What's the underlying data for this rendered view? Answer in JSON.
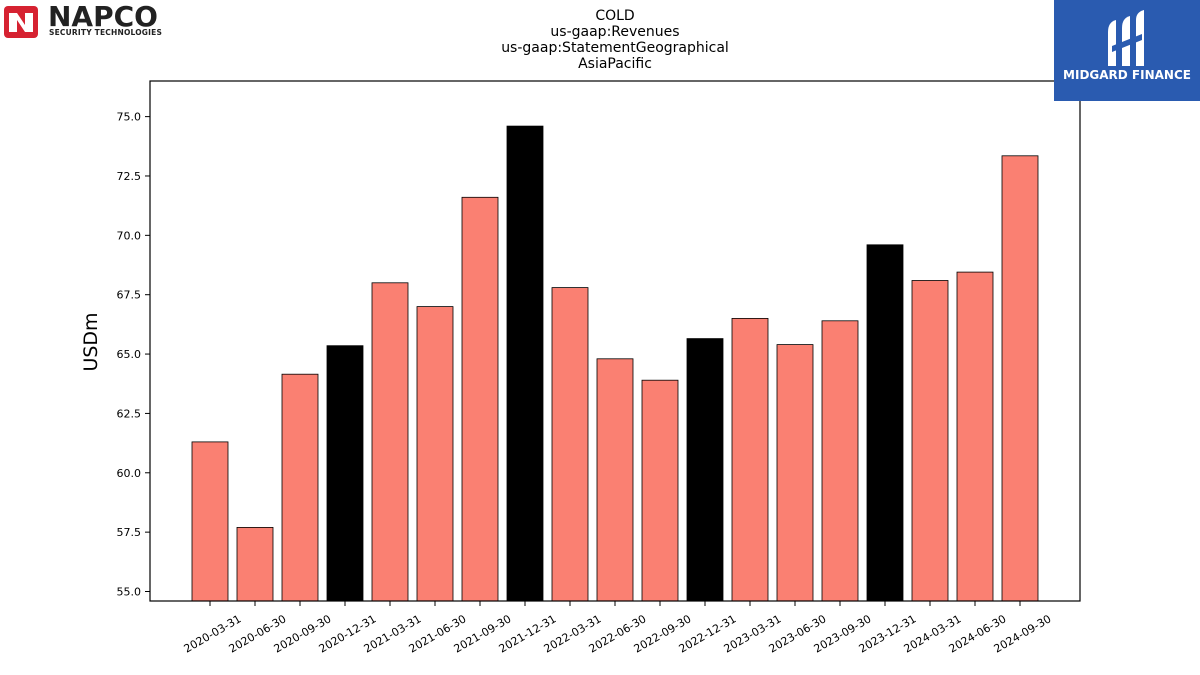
{
  "logos": {
    "left": {
      "word": "NAPCO",
      "sub": "SECURITY TECHNOLOGIES"
    },
    "right": {
      "text": "MIDGARD FINANCE"
    }
  },
  "chart_data": {
    "type": "bar",
    "title_lines": [
      "COLD",
      "us-gaap:Revenues",
      "us-gaap:StatementGeographical",
      "AsiaPacific"
    ],
    "xlabel": "",
    "ylabel": "USDm",
    "categories": [
      "2020-03-31",
      "2020-06-30",
      "2020-09-30",
      "2020-12-31",
      "2021-03-31",
      "2021-06-30",
      "2021-09-30",
      "2021-12-31",
      "2022-03-31",
      "2022-06-30",
      "2022-09-30",
      "2022-12-31",
      "2023-03-31",
      "2023-06-30",
      "2023-09-30",
      "2023-12-31",
      "2024-03-31",
      "2024-06-30",
      "2024-09-30"
    ],
    "values": [
      61.3,
      57.7,
      64.15,
      65.35,
      68.0,
      67.0,
      71.6,
      74.6,
      67.8,
      64.8,
      63.9,
      65.65,
      66.5,
      65.4,
      66.4,
      69.6,
      68.1,
      68.45,
      73.35
    ],
    "highlight": [
      false,
      false,
      false,
      true,
      false,
      false,
      false,
      true,
      false,
      false,
      false,
      true,
      false,
      false,
      false,
      true,
      false,
      false,
      false
    ],
    "colors": {
      "bar": "#fa8072",
      "highlight": "#000000",
      "edge": "#000000"
    },
    "yticks": [
      "55.0",
      "57.5",
      "60.0",
      "62.5",
      "65.0",
      "67.5",
      "70.0",
      "72.5",
      "75.0"
    ],
    "ylim": [
      54.6,
      76.5
    ],
    "grid": false,
    "legend": "none"
  }
}
